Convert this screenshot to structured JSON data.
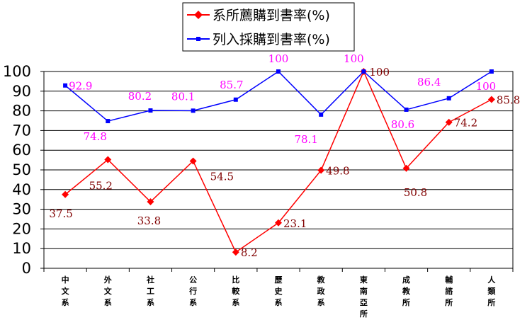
{
  "chart_data": {
    "type": "line",
    "categories": [
      [
        "中",
        "文",
        "系"
      ],
      [
        "外",
        "文",
        "系"
      ],
      [
        "社",
        "工",
        "系"
      ],
      [
        "公",
        "行",
        "系"
      ],
      [
        "比",
        "較",
        "系"
      ],
      [
        "歷",
        "史",
        "系"
      ],
      [
        "教",
        "政",
        "系"
      ],
      [
        "東",
        "南",
        "亞",
        "所"
      ],
      [
        "成",
        "教",
        "所"
      ],
      [
        "輔",
        "諮",
        "所"
      ],
      [
        "人",
        "類",
        "所"
      ]
    ],
    "ylim": [
      0,
      100
    ],
    "yticks": [
      "0",
      "10",
      "20",
      "30",
      "40",
      "50",
      "60",
      "70",
      "80",
      "90",
      "100"
    ],
    "grid": true,
    "legend_position": "top-center",
    "series": [
      {
        "name": "系所薦購到書率(%)",
        "color": "#ff0000",
        "label_color": "#800000",
        "marker": "diamond",
        "values": [
          37.5,
          55.2,
          33.8,
          54.5,
          8.2,
          23.1,
          49.8,
          100,
          50.8,
          74.2,
          85.8
        ],
        "labels": [
          "37.5",
          "55.2",
          "33.8",
          "54.5",
          "8.2",
          "23.1",
          "49.8",
          "100",
          "50.8",
          "74.2",
          "85.8"
        ]
      },
      {
        "name": "列入採購到書率(%)",
        "color": "#0000ff",
        "label_color": "#ff00ff",
        "marker": "square",
        "values": [
          92.9,
          74.8,
          80.2,
          80.1,
          85.7,
          100,
          78.1,
          100,
          80.6,
          86.4,
          100
        ],
        "labels": [
          "92.9",
          "74.8",
          "80.2",
          "80.1",
          "85.7",
          "100",
          "78.1",
          "100",
          "80.6",
          "86.4",
          "100"
        ]
      }
    ]
  }
}
